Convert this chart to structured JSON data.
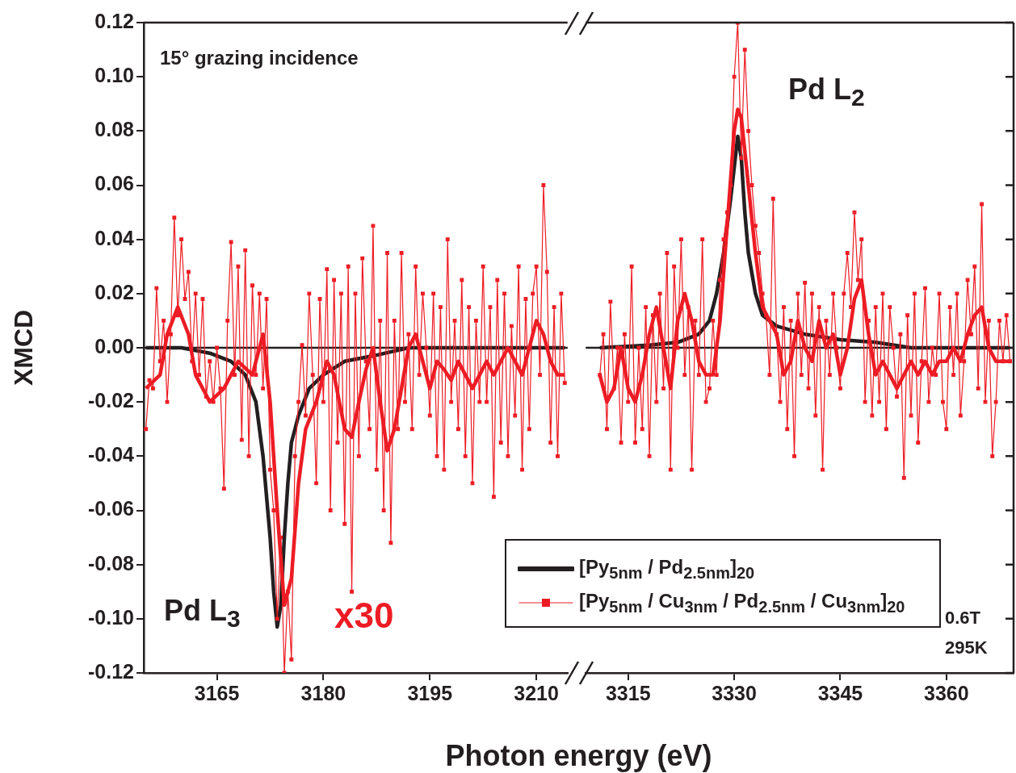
{
  "chart_data": [
    {
      "type": "line",
      "ylabel": "XMCD",
      "xlabel": "Photon energy (eV)",
      "xlim": [
        3154.7,
        3214.4
      ],
      "xticks": [
        3165,
        3180,
        3195,
        3210
      ],
      "ylim": [
        -0.12,
        0.12
      ],
      "yticks": [
        {
          "value": -0.12,
          "label": "-0.12"
        },
        {
          "value": -0.1,
          "label": "-0.10"
        },
        {
          "value": -0.08,
          "label": "-0.08"
        },
        {
          "value": -0.06,
          "label": "-0.06"
        },
        {
          "value": -0.04,
          "label": "-0.04"
        },
        {
          "value": -0.02,
          "label": "-0.02"
        },
        {
          "value": 0,
          "label": "0.00"
        },
        {
          "value": 0.02,
          "label": "0.02"
        },
        {
          "value": 0.04,
          "label": "0.04"
        },
        {
          "value": 0.06,
          "label": "0.06"
        },
        {
          "value": 0.08,
          "label": "0.08"
        },
        {
          "value": 0.1,
          "label": "0.10"
        },
        {
          "value": 0.12,
          "label": "0.12"
        }
      ],
      "ref_lines": [
        {
          "axis": "y",
          "value": 0,
          "color": "#231f20"
        }
      ],
      "annotations": [
        "15° grazing incidence",
        "Pd L$_{3}$",
        "x30"
      ],
      "series": [
        {
          "color": "#231f20",
          "marker": "none",
          "x": [
            3155,
            3160,
            3164,
            3167,
            3169,
            3170.5,
            3171.5,
            3172.5,
            3173,
            3173.5,
            3174,
            3174.5,
            3175,
            3175.5,
            3176.5,
            3178,
            3180,
            3183,
            3187,
            3192,
            3214
          ],
          "values": [
            0,
            0,
            -0.002,
            -0.005,
            -0.01,
            -0.02,
            -0.04,
            -0.07,
            -0.09,
            -0.103,
            -0.095,
            -0.07,
            -0.05,
            -0.035,
            -0.025,
            -0.015,
            -0.01,
            -0.005,
            -0.003,
            0,
            0
          ]
        },
        {
          "color": "#ed1c24",
          "marker": "square",
          "x": [
            3155,
            3155.5,
            3156,
            3156.5,
            3157,
            3157.5,
            3158,
            3158.5,
            3159,
            3159.5,
            3160,
            3160.5,
            3161,
            3161.5,
            3162,
            3162.5,
            3163,
            3163.5,
            3164,
            3164.5,
            3165,
            3165.5,
            3166,
            3166.5,
            3167,
            3167.5,
            3168,
            3168.5,
            3169,
            3169.5,
            3170,
            3170.5,
            3171,
            3171.5,
            3172,
            3172.5,
            3173,
            3173.5,
            3174,
            3174.5,
            3175,
            3175.5,
            3176,
            3176.5,
            3177,
            3177.5,
            3178,
            3178.5,
            3179,
            3179.5,
            3180,
            3180.5,
            3181,
            3181.5,
            3182,
            3182.5,
            3183,
            3183.5,
            3184,
            3184.5,
            3185,
            3185.5,
            3186,
            3186.5,
            3187,
            3187.5,
            3188,
            3188.5,
            3189,
            3189.5,
            3190,
            3190.5,
            3191,
            3191.5,
            3192,
            3192.5,
            3193,
            3193.5,
            3194,
            3194.5,
            3195,
            3195.5,
            3196,
            3196.5,
            3197,
            3197.5,
            3198,
            3198.5,
            3199,
            3199.5,
            3200,
            3200.5,
            3201,
            3201.5,
            3202,
            3202.5,
            3203,
            3203.5,
            3204,
            3204.5,
            3205,
            3205.5,
            3206,
            3206.5,
            3207,
            3207.5,
            3208,
            3208.5,
            3209,
            3209.5,
            3210,
            3210.5,
            3211,
            3211.5,
            3212,
            3212.5,
            3213,
            3213.5,
            3214
          ],
          "values": [
            -0.03,
            -0.012,
            -0.015,
            0.022,
            -0.005,
            0.01,
            -0.02,
            0.005,
            0.048,
            0.012,
            0.04,
            0.018,
            0.028,
            -0.005,
            0.02,
            -0.01,
            0.018,
            -0.018,
            -0.005,
            -0.02,
            0,
            -0.015,
            -0.052,
            0.01,
            0.039,
            -0.01,
            0.03,
            -0.034,
            0.036,
            -0.04,
            0.023,
            -0.01,
            0.02,
            -0.015,
            0.018,
            -0.045,
            -0.06,
            -0.1,
            -0.07,
            -0.12,
            -0.09,
            -0.115,
            -0.04,
            -0.02,
            0.001,
            -0.025,
            0.02,
            -0.01,
            -0.05,
            0.018,
            -0.02,
            0.029,
            -0.06,
            0.025,
            -0.035,
            0.02,
            -0.065,
            0.03,
            -0.09,
            0.02,
            -0.04,
            0.033,
            -0.005,
            -0.03,
            0.045,
            -0.045,
            0.01,
            -0.06,
            0.035,
            -0.072,
            0.01,
            -0.03,
            0.035,
            -0.02,
            0.005,
            -0.03,
            0.03,
            -0.01,
            0.02,
            0,
            -0.025,
            0.02,
            -0.04,
            0.015,
            -0.045,
            0.04,
            -0.02,
            0.01,
            -0.03,
            0.025,
            -0.04,
            0.015,
            -0.05,
            0.01,
            -0.02,
            0.03,
            -0.02,
            0.015,
            -0.055,
            0.025,
            -0.035,
            0.02,
            -0.04,
            0.008,
            -0.025,
            0.03,
            -0.045,
            0.018,
            -0.03,
            0.02,
            0.03,
            -0.01,
            0.06,
            0.028,
            -0.035,
            0.015,
            -0.04,
            0.02,
            -0.013
          ]
        },
        {
          "color": "#ed1c24",
          "marker": "none",
          "x": [
            3155,
            3157,
            3158,
            3159.5,
            3161,
            3162,
            3164,
            3166,
            3168,
            3170,
            3171.5,
            3172.5,
            3173.5,
            3174.5,
            3175.5,
            3176.5,
            3177.5,
            3179,
            3180.5,
            3181.5,
            3183,
            3184,
            3185,
            3186,
            3187,
            3188,
            3189,
            3190,
            3191,
            3192,
            3193,
            3194,
            3195,
            3196,
            3197,
            3198,
            3199,
            3200,
            3201,
            3202,
            3203,
            3204,
            3205,
            3206,
            3207,
            3208,
            3209,
            3210,
            3211,
            3212,
            3213,
            3214
          ],
          "values": [
            -0.015,
            -0.01,
            0.005,
            0.015,
            0.005,
            -0.01,
            -0.02,
            -0.015,
            -0.005,
            -0.01,
            0.005,
            -0.02,
            -0.06,
            -0.095,
            -0.085,
            -0.05,
            -0.03,
            -0.02,
            -0.005,
            -0.01,
            -0.03,
            -0.033,
            -0.02,
            -0.008,
            0,
            -0.02,
            -0.038,
            -0.03,
            -0.015,
            0,
            0.005,
            -0.005,
            -0.015,
            -0.005,
            -0.008,
            -0.012,
            -0.005,
            -0.01,
            -0.015,
            -0.01,
            -0.005,
            -0.01,
            -0.005,
            0,
            -0.005,
            -0.01,
            0,
            0.01,
            0.005,
            -0.005,
            -0.01,
            -0.01
          ]
        }
      ]
    },
    {
      "type": "line",
      "tick_labels": "x",
      "legend": "bottom left",
      "xlim": [
        3309,
        3369.5
      ],
      "xticks": [
        3315,
        3330,
        3345,
        3360
      ],
      "ylim": [
        -0.12,
        0.12
      ],
      "yticks": [
        {
          "value": -0.12,
          "label": null
        },
        {
          "value": -0.1,
          "label": null
        },
        {
          "value": -0.08,
          "label": null
        },
        {
          "value": -0.06,
          "label": null
        },
        {
          "value": -0.04,
          "label": null
        },
        {
          "value": -0.02,
          "label": null
        },
        {
          "value": 0,
          "label": null
        },
        {
          "value": 0.02,
          "label": null
        },
        {
          "value": 0.04,
          "label": null
        },
        {
          "value": 0.06,
          "label": null
        },
        {
          "value": 0.08,
          "label": null
        },
        {
          "value": 0.1,
          "label": null
        },
        {
          "value": 0.12,
          "label": null
        }
      ],
      "ref_lines": [
        {
          "axis": "y",
          "value": 0,
          "color": "#231f20"
        }
      ],
      "annotations": [
        "Pd L$_{2}$",
        "0.6T",
        "295K"
      ],
      "series": [
        {
          "name": "[Py$_{5nm}$ / Pd$_{2.5nm}$]$_{20}$",
          "color": "#231f20",
          "marker": "none",
          "x": [
            3311,
            3318,
            3322,
            3325,
            3326.5,
            3327.5,
            3328.5,
            3329.5,
            3330.5,
            3331,
            3331.5,
            3332,
            3333,
            3334,
            3336,
            3340,
            3345,
            3350,
            3355,
            3369
          ],
          "values": [
            0,
            0.001,
            0.002,
            0.005,
            0.01,
            0.02,
            0.035,
            0.055,
            0.078,
            0.07,
            0.05,
            0.035,
            0.02,
            0.012,
            0.008,
            0.005,
            0.003,
            0.002,
            0,
            0
          ]
        },
        {
          "name": "[Py$_{5nm}$ / Cu$_{3nm}$ / Pd$_{2.5nm}$ / Cu$_{3nm}$]$_{20}$",
          "color": "#ed1c24",
          "marker": "square",
          "x": [
            3311,
            3311.5,
            3312,
            3312.5,
            3313,
            3313.5,
            3314,
            3314.5,
            3315,
            3315.5,
            3316,
            3316.5,
            3317,
            3317.5,
            3318,
            3318.5,
            3319,
            3319.5,
            3320,
            3320.5,
            3321,
            3321.5,
            3322,
            3322.5,
            3323,
            3323.5,
            3324,
            3324.5,
            3325,
            3325.5,
            3326,
            3326.5,
            3327,
            3327.5,
            3328,
            3328.5,
            3329,
            3329.5,
            3330,
            3330.5,
            3331,
            3331.5,
            3332,
            3332.5,
            3333,
            3333.5,
            3334,
            3334.5,
            3335,
            3335.5,
            3336,
            3336.5,
            3337,
            3337.5,
            3338,
            3338.5,
            3339,
            3339.5,
            3340,
            3340.5,
            3341,
            3341.5,
            3342,
            3342.5,
            3343,
            3343.5,
            3344,
            3344.5,
            3345,
            3345.5,
            3346,
            3346.5,
            3347,
            3347.5,
            3348,
            3348.5,
            3349,
            3349.5,
            3350,
            3350.5,
            3351,
            3351.5,
            3352,
            3352.5,
            3353,
            3353.5,
            3354,
            3354.5,
            3355,
            3355.5,
            3356,
            3356.5,
            3357,
            3357.5,
            3358,
            3358.5,
            3359,
            3359.5,
            3360,
            3360.5,
            3361,
            3361.5,
            3362,
            3362.5,
            3363,
            3363.5,
            3364,
            3364.5,
            3365,
            3365.5,
            3366,
            3366.5,
            3367,
            3367.5,
            3368,
            3368.5,
            3369
          ],
          "values": [
            -0.01,
            0.005,
            -0.03,
            0.017,
            -0.015,
            0,
            -0.035,
            0.005,
            -0.02,
            0.03,
            -0.035,
            0,
            -0.03,
            0.015,
            -0.04,
            0.012,
            -0.02,
            0.02,
            -0.015,
            0.035,
            -0.045,
            0.03,
            0,
            0.04,
            -0.01,
            0.015,
            -0.045,
            0.01,
            -0.01,
            0.04,
            -0.02,
            -0.015,
            0.01,
            -0.01,
            0.025,
            0.04,
            0.05,
            0.06,
            0.1,
            0.12,
            0.07,
            0.11,
            0.08,
            0.06,
            0.045,
            0.035,
            0.02,
            0.012,
            -0.01,
            0.055,
            0.005,
            -0.02,
            0.015,
            -0.03,
            0.01,
            -0.04,
            0.02,
            -0.01,
            0.024,
            -0.015,
            0.02,
            -0.025,
            0.015,
            -0.045,
            0.01,
            -0.01,
            0.02,
            0,
            -0.015,
            0.02,
            0.035,
            0.015,
            0.05,
            0.025,
            0.04,
            -0.02,
            0.01,
            -0.025,
            0.015,
            -0.02,
            0.02,
            -0.03,
            0.015,
            0,
            -0.018,
            0.005,
            -0.048,
            0.012,
            -0.025,
            0.02,
            -0.035,
            -0.005,
            0.022,
            -0.02,
            0,
            -0.01,
            0.02,
            -0.02,
            -0.03,
            0.015,
            -0.01,
            0.02,
            -0.025,
            -0.005,
            0.025,
            0.005,
            0.03,
            -0.015,
            0.053,
            -0.02,
            0.01,
            -0.04,
            -0.02,
            0.01,
            -0.005,
            0.012,
            -0.005
          ]
        },
        {
          "color": "#ed1c24",
          "marker": "none",
          "x": [
            3311,
            3312,
            3313,
            3314,
            3315,
            3316,
            3317,
            3318,
            3319,
            3320,
            3321,
            3322,
            3323,
            3324,
            3325,
            3326,
            3327,
            3328,
            3329,
            3330,
            3330.5,
            3331,
            3332,
            3333,
            3334,
            3335,
            3336,
            3337,
            3338,
            3339,
            3340,
            3341,
            3342,
            3343,
            3344,
            3345,
            3346,
            3347,
            3348,
            3349,
            3350,
            3351,
            3352,
            3353,
            3354,
            3355,
            3356,
            3357,
            3358,
            3359,
            3360,
            3361,
            3362,
            3363,
            3364,
            3365,
            3366,
            3367,
            3368,
            3369
          ],
          "values": [
            -0.01,
            -0.02,
            -0.015,
            0,
            -0.015,
            -0.02,
            -0.01,
            0.005,
            0.015,
            0,
            -0.015,
            0.01,
            0.02,
            0.01,
            -0.005,
            -0.01,
            -0.01,
            0.01,
            0.045,
            0.08,
            0.088,
            0.085,
            0.06,
            0.035,
            0.015,
            0.01,
            0.005,
            -0.01,
            -0.005,
            0.01,
            0,
            -0.005,
            0.01,
            0,
            0.005,
            -0.01,
            0,
            0.018,
            0.025,
            0.005,
            -0.01,
            -0.005,
            -0.01,
            -0.015,
            -0.01,
            -0.005,
            -0.01,
            -0.005,
            -0.01,
            -0.005,
            -0.005,
            0,
            -0.005,
            0.005,
            0.012,
            0.015,
            0,
            -0.005,
            -0.005,
            -0.005
          ]
        }
      ]
    }
  ]
}
